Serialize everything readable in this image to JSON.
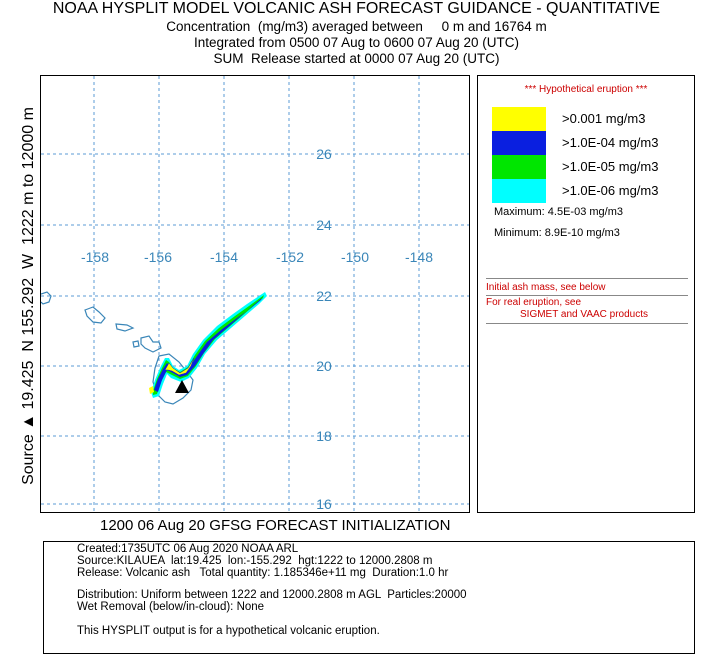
{
  "header": {
    "title": "NOAA HYSPLIT MODEL VOLCANIC ASH FORECAST GUIDANCE - QUANTITATIVE",
    "line1": "Concentration  (mg/m3) averaged between     0 m and 16764 m",
    "line2": "Integrated from 0500 07 Aug to 0600 07 Aug 20 (UTC)",
    "line3": "SUM  Release started at 0000 07 Aug 20 (UTC)"
  },
  "side_label": "Source ▲ 19.425  N 155.292  W  1222 m to 12000 m",
  "map": {
    "lon_labels": [
      "-158",
      "-156",
      "-154",
      "-152",
      "-150",
      "-148"
    ],
    "lat_labels": [
      "26",
      "24",
      "22",
      "20",
      "18",
      "16"
    ],
    "grid_color": "#5b9bd5",
    "label_color": "#3a86b8",
    "source_marker": "triangle-icon"
  },
  "legend": {
    "hypothetical": "*** Hypothetical eruption ***",
    "levels": [
      {
        "label": ">0.001 mg/m3",
        "color": "#ffff00"
      },
      {
        "label": ">1.0E-04 mg/m3",
        "color": "#0a1fe0"
      },
      {
        "label": ">1.0E-05 mg/m3",
        "color": "#00e600"
      },
      {
        "label": ">1.0E-06 mg/m3",
        "color": "#00ffff"
      }
    ],
    "maximum": "Maximum: 4.5E-03 mg/m3",
    "minimum": "Minimum: 8.9E-10 mg/m3",
    "note1": "Initial ash mass, see below",
    "note2": "For real eruption, see",
    "note3": "SIGMET and VAAC products"
  },
  "init_line": "1200 06 Aug 20 GFSG FORECAST INITIALIZATION",
  "info": {
    "created": "Created:1735UTC 06 Aug 2020 NOAA ARL",
    "source": "Source:KILAUEA  lat:19.425  lon:-155.292  hgt:1222 to 12000.2808 m",
    "release": "Release: Volcanic ash   Total quantity: 1.185346e+11 mg  Duration:1.0 hr",
    "distribution": "Distribution: Uniform between 1222 and 12000.2808 m AGL  Particles:20000",
    "wet_removal": "Wet Removal (below/in-cloud): None",
    "disclaimer": "This HYSPLIT output is for a hypothetical volcanic eruption."
  }
}
